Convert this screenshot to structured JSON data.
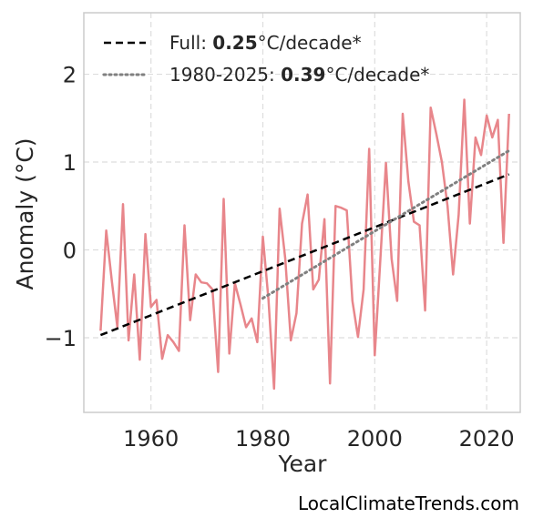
{
  "chart_data": {
    "type": "line",
    "xlabel": "Year",
    "ylabel": "Anomaly (°C)",
    "xlim": [
      1948,
      2026
    ],
    "ylim": [
      -1.85,
      2.7
    ],
    "xticks": [
      1960,
      1980,
      2000,
      2020
    ],
    "yticks": [
      -1,
      0,
      1,
      2
    ],
    "ytick_labels": [
      "−1",
      "0",
      "1",
      "2"
    ],
    "grid": true,
    "legend_position": "top-left",
    "series": [
      {
        "color": "#e8868b",
        "style": "solid",
        "x": [
          1951,
          1952,
          1953,
          1954,
          1955,
          1956,
          1957,
          1958,
          1959,
          1960,
          1961,
          1962,
          1963,
          1964,
          1965,
          1966,
          1967,
          1968,
          1969,
          1970,
          1971,
          1972,
          1973,
          1974,
          1975,
          1976,
          1977,
          1978,
          1979,
          1980,
          1981,
          1982,
          1983,
          1984,
          1985,
          1986,
          1987,
          1988,
          1989,
          1990,
          1991,
          1992,
          1993,
          1994,
          1995,
          1996,
          1997,
          1998,
          1999,
          2000,
          2001,
          2002,
          2003,
          2004,
          2005,
          2006,
          2007,
          2008,
          2009,
          2010,
          2011,
          2012,
          2013,
          2014,
          2015,
          2016,
          2017,
          2018,
          2019,
          2020,
          2021,
          2022,
          2023,
          2024
        ],
        "values": [
          -0.92,
          0.22,
          -0.35,
          -0.88,
          0.52,
          -1.03,
          -0.28,
          -1.25,
          0.18,
          -0.65,
          -0.57,
          -1.24,
          -0.97,
          -1.05,
          -1.15,
          0.28,
          -0.8,
          -0.28,
          -0.37,
          -0.38,
          -0.45,
          -1.39,
          0.58,
          -1.18,
          -0.38,
          -0.62,
          -0.88,
          -0.78,
          -1.05,
          0.15,
          -0.57,
          -1.58,
          0.47,
          -0.1,
          -1.03,
          -0.72,
          0.3,
          0.63,
          -0.45,
          -0.34,
          0.35,
          -1.52,
          0.5,
          0.48,
          0.45,
          -0.58,
          -0.99,
          -0.45,
          1.15,
          -1.2,
          -0.1,
          0.99,
          -0.1,
          -0.58,
          1.55,
          0.78,
          0.32,
          0.28,
          -0.69,
          1.62,
          1.32,
          1.0,
          0.5,
          -0.28,
          0.4,
          1.71,
          0.3,
          1.28,
          1.08,
          1.53,
          1.28,
          1.48,
          0.08,
          1.55
        ]
      },
      {
        "name": "Full: 0.25°C/decade*",
        "color": "#000000",
        "style": "dashed",
        "x": [
          1951,
          2024
        ],
        "values": [
          -0.97,
          0.86
        ]
      },
      {
        "name": "1980-2025: 0.39°C/decade*",
        "color": "#808080",
        "style": "dotted",
        "x": [
          1980,
          2024
        ],
        "values": [
          -0.55,
          1.13
        ]
      }
    ]
  },
  "legend": [
    {
      "prefix": "Full: ",
      "bold": "0.25",
      "suffix": "°C/decade*"
    },
    {
      "prefix": "1980-2025: ",
      "bold": "0.39",
      "suffix": "°C/decade*"
    }
  ],
  "credit": "LocalClimateTrends.com"
}
